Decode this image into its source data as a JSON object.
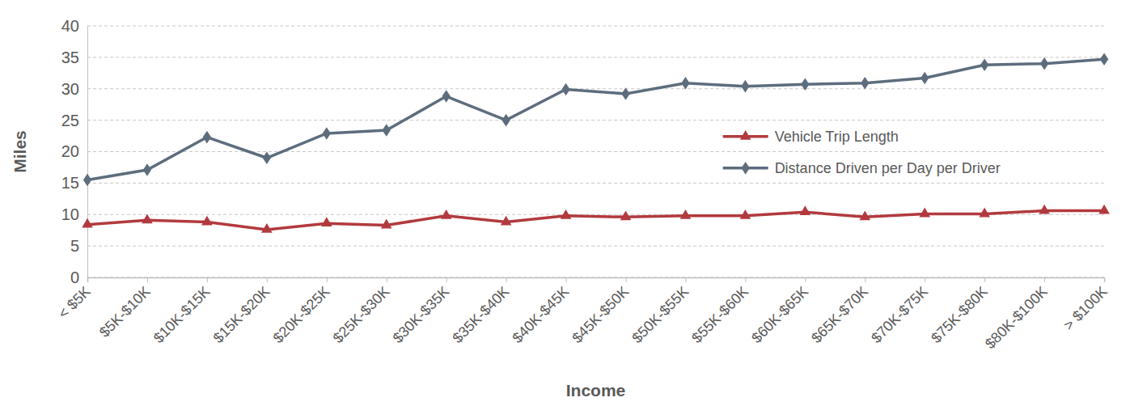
{
  "chart_data": {
    "type": "line",
    "x_label": "Income",
    "y_label": "Miles",
    "categories": [
      "< $5K",
      "$5K-$10K",
      "$10K-$15K",
      "$15K-$20K",
      "$20K-$25K",
      "$25K-$30K",
      "$30K-$35K",
      "$35K-$40K",
      "$40K-$45K",
      "$45K-$50K",
      "$50K-$55K",
      "$55K-$60K",
      "$60K-$65K",
      "$65K-$70K",
      "$70K-$75K",
      "$75K-$80K",
      "$80K-$100K",
      "> $100K"
    ],
    "series": [
      {
        "name": "Vehicle Trip Length",
        "color": "#b23a3e",
        "marker": "triangle",
        "values": [
          8.4,
          9.1,
          8.8,
          7.6,
          8.6,
          8.3,
          9.8,
          8.8,
          9.8,
          9.6,
          9.8,
          9.8,
          10.4,
          9.6,
          10.1,
          10.1,
          10.6,
          10.6
        ]
      },
      {
        "name": "Distance Driven per Day per Driver",
        "color": "#5d6d7e",
        "marker": "diamond",
        "values": [
          15.5,
          17.1,
          22.3,
          19.0,
          22.9,
          23.4,
          28.8,
          25.0,
          29.9,
          29.2,
          30.9,
          30.4,
          30.7,
          30.9,
          31.7,
          33.8,
          34.0,
          34.7
        ]
      }
    ],
    "ylim": [
      0,
      40
    ],
    "yticks": [
      0,
      5,
      10,
      15,
      20,
      25,
      30,
      35,
      40
    ],
    "grid": true,
    "legend": "right"
  }
}
